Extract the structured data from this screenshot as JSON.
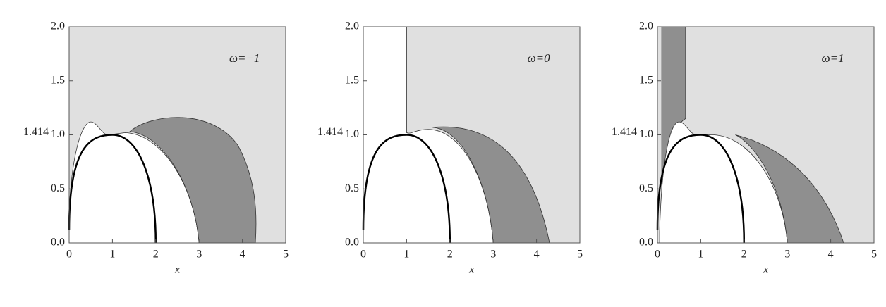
{
  "chart_data": [
    {
      "type": "region",
      "annotation": "ω=−1",
      "xlabel": "x",
      "ylabel": "1.414",
      "xlim": [
        0,
        5
      ],
      "ylim": [
        0,
        2
      ],
      "xticks": [
        0,
        1,
        2,
        3,
        4,
        5
      ],
      "yticks": [
        {
          "value": 0,
          "label": "0.0"
        },
        {
          "value": 0.5,
          "label": "0.5"
        },
        {
          "value": 1,
          "label": "1.0"
        },
        {
          "value": 1.5,
          "label": "1.5"
        },
        {
          "value": 2,
          "label": "2.0"
        }
      ]
    },
    {
      "type": "region",
      "annotation": "ω=0",
      "xlabel": "x",
      "ylabel": "1.414",
      "xlim": [
        0,
        5
      ],
      "ylim": [
        0,
        2
      ],
      "xticks": [
        0,
        1,
        2,
        3,
        4,
        5
      ],
      "yticks": [
        {
          "value": 0,
          "label": "0.0"
        },
        {
          "value": 0.5,
          "label": "0.5"
        },
        {
          "value": 1,
          "label": "1.0"
        },
        {
          "value": 1.5,
          "label": "1.5"
        },
        {
          "value": 2,
          "label": "2.0"
        }
      ]
    },
    {
      "type": "region",
      "annotation": "ω=1",
      "xlabel": "x",
      "ylabel": "1.414",
      "xlim": [
        0,
        5
      ],
      "ylim": [
        0,
        2
      ],
      "xticks": [
        0,
        1,
        2,
        3,
        4,
        5
      ],
      "yticks": [
        {
          "value": 0,
          "label": "0.0"
        },
        {
          "value": 0.5,
          "label": "0.5"
        },
        {
          "value": 1,
          "label": "1.0"
        },
        {
          "value": 1.5,
          "label": "1.5"
        },
        {
          "value": 2,
          "label": "2.0"
        }
      ]
    }
  ]
}
